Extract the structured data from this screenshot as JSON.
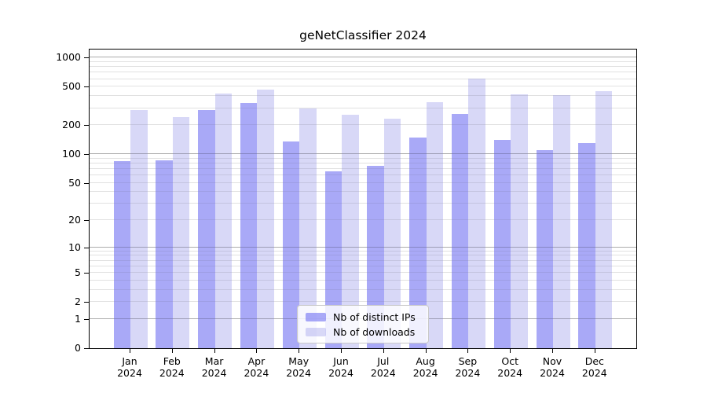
{
  "title": "geNetClassifier 2024",
  "legend": {
    "items": [
      {
        "id": "distinct-ips",
        "label": "Nb of distinct IPs",
        "color": "#a9a9f7"
      },
      {
        "id": "downloads",
        "label": "Nb of downloads",
        "color": "#d8d8f7"
      }
    ]
  },
  "y_axis": {
    "tick_labels": [
      "1000",
      "500",
      "200",
      "100",
      "50",
      "20",
      "10",
      "5",
      "2",
      "1",
      "0"
    ]
  },
  "x_axis": {
    "months": [
      "Jan",
      "Feb",
      "Mar",
      "Apr",
      "May",
      "Jun",
      "Jul",
      "Aug",
      "Sep",
      "Oct",
      "Nov",
      "Dec"
    ],
    "year": "2024"
  },
  "chart_data": {
    "type": "bar",
    "title": "geNetClassifier 2024",
    "categories": [
      "Jan 2024",
      "Feb 2024",
      "Mar 2024",
      "Apr 2024",
      "May 2024",
      "Jun 2024",
      "Jul 2024",
      "Aug 2024",
      "Sep 2024",
      "Oct 2024",
      "Nov 2024",
      "Dec 2024"
    ],
    "series": [
      {
        "name": "Nb of distinct IPs",
        "color": "#a9a9f7",
        "values": [
          85,
          87,
          290,
          340,
          135,
          66,
          75,
          148,
          261,
          140,
          110,
          130
        ]
      },
      {
        "name": "Nb of downloads",
        "color": "#d8d8f7",
        "values": [
          285,
          245,
          430,
          472,
          296,
          255,
          232,
          344,
          603,
          415,
          407,
          448
        ]
      }
    ],
    "xlabel": "",
    "ylabel": "",
    "yscale": "log1p",
    "yticks": [
      0,
      1,
      2,
      5,
      10,
      20,
      50,
      100,
      200,
      500,
      1000
    ],
    "ylim": [
      0,
      1250
    ],
    "grid": "horizontal, log decades with minor lines",
    "legend_position": "inside bottom center"
  }
}
